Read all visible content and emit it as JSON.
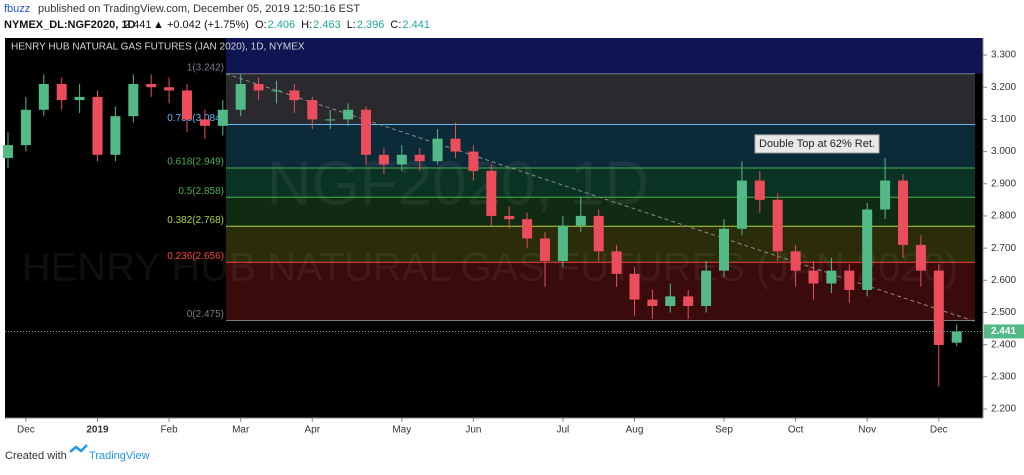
{
  "header": {
    "publisher": "fbuzz",
    "published": "published on TradingView.com, December 05, 2019 12:50:16 EST",
    "symbol": "NYMEX_DL:NGF2020, 1D",
    "last": "2.441",
    "change": "▲ +0.042 (+1.75%)",
    "quote": [
      {
        "label": "O:",
        "value": "2.406"
      },
      {
        "label": "H:",
        "value": "2.463"
      },
      {
        "label": "L:",
        "value": "2.396"
      },
      {
        "label": "C:",
        "value": "2.441"
      }
    ]
  },
  "chart_data": {
    "type": "candlestick",
    "title": "HENRY HUB NATURAL GAS FUTURES (JAN 2020), 1D, NYMEX",
    "watermark": [
      "NGF2020, 1D",
      "HENRY HUB NATURAL GAS FUTURES (JAN 2020)"
    ],
    "annotation": "Double Top at 62% Ret.",
    "categories": [
      null,
      "Dec",
      null,
      null,
      null,
      "2019",
      null,
      null,
      null,
      "Feb",
      null,
      null,
      null,
      "Mar",
      null,
      null,
      null,
      "Apr",
      null,
      null,
      null,
      null,
      "May",
      null,
      null,
      null,
      "Jun",
      null,
      null,
      null,
      null,
      "Jul",
      null,
      null,
      null,
      "Aug",
      null,
      null,
      null,
      null,
      "Sep",
      null,
      null,
      null,
      "Oct",
      null,
      null,
      null,
      "Nov",
      null,
      null,
      null,
      "Dec",
      null
    ],
    "open": [
      2.98,
      3.02,
      3.13,
      3.21,
      3.16,
      3.17,
      2.99,
      3.11,
      3.21,
      3.2,
      3.19,
      3.1,
      3.08,
      3.13,
      3.21,
      3.19,
      3.19,
      3.16,
      3.1,
      3.1,
      3.13,
      2.99,
      2.96,
      2.99,
      2.97,
      3.04,
      3.0,
      2.94,
      2.8,
      2.79,
      2.73,
      2.66,
      2.77,
      2.8,
      2.69,
      2.62,
      2.54,
      2.52,
      2.55,
      2.52,
      2.63,
      2.76,
      2.91,
      2.85,
      2.69,
      2.63,
      2.59,
      2.63,
      2.57,
      2.82,
      2.91,
      2.71,
      2.63,
      2.406
    ],
    "high": [
      3.06,
      3.17,
      3.24,
      3.23,
      3.21,
      3.19,
      3.14,
      3.24,
      3.24,
      3.23,
      3.21,
      3.13,
      3.16,
      3.24,
      3.23,
      3.22,
      3.21,
      3.17,
      3.13,
      3.15,
      3.14,
      3.01,
      3.02,
      3.01,
      3.07,
      3.09,
      3.02,
      2.96,
      2.83,
      2.81,
      2.75,
      2.8,
      2.86,
      2.82,
      2.71,
      2.64,
      2.57,
      2.59,
      2.57,
      2.66,
      2.79,
      2.97,
      2.94,
      2.87,
      2.71,
      2.66,
      2.67,
      2.65,
      2.84,
      2.98,
      2.93,
      2.74,
      2.65,
      2.463
    ],
    "low": [
      2.95,
      3.0,
      3.11,
      3.13,
      3.12,
      2.97,
      2.97,
      3.09,
      3.17,
      3.15,
      3.06,
      3.04,
      3.05,
      3.11,
      3.16,
      3.15,
      3.12,
      3.07,
      3.07,
      3.08,
      2.96,
      2.93,
      2.94,
      2.94,
      2.96,
      2.98,
      2.91,
      2.77,
      2.76,
      2.7,
      2.58,
      2.64,
      2.75,
      2.66,
      2.58,
      2.49,
      2.48,
      2.5,
      2.48,
      2.5,
      2.61,
      2.74,
      2.81,
      2.66,
      2.58,
      2.54,
      2.56,
      2.53,
      2.55,
      2.79,
      2.67,
      2.58,
      2.27,
      2.396
    ],
    "close": [
      3.02,
      3.13,
      3.21,
      3.16,
      3.17,
      2.99,
      3.11,
      3.21,
      3.2,
      3.19,
      3.1,
      3.08,
      3.13,
      3.21,
      3.19,
      3.19,
      3.16,
      3.1,
      3.1,
      3.13,
      2.99,
      2.96,
      2.99,
      2.97,
      3.04,
      3.0,
      2.94,
      2.8,
      2.79,
      2.73,
      2.66,
      2.77,
      2.8,
      2.69,
      2.62,
      2.54,
      2.52,
      2.55,
      2.52,
      2.63,
      2.76,
      2.91,
      2.85,
      2.69,
      2.63,
      2.59,
      2.63,
      2.57,
      2.82,
      2.91,
      2.71,
      2.63,
      2.399,
      2.441
    ],
    "up_color": "#53b987",
    "down_color": "#eb4d5c",
    "last_price": {
      "value": 2.441,
      "label": "2.441"
    },
    "last_color": "#53b987",
    "ylim": [
      2.172,
      3.353
    ],
    "yticks": [
      {
        "value": 2.2,
        "label": "2.200"
      },
      {
        "value": 2.3,
        "label": "2.300"
      },
      {
        "value": 2.4,
        "label": "2.400"
      },
      {
        "value": 2.5,
        "label": "2.500"
      },
      {
        "value": 2.6,
        "label": "2.600"
      },
      {
        "value": 2.7,
        "label": "2.700"
      },
      {
        "value": 2.8,
        "label": "2.800"
      },
      {
        "value": 2.9,
        "label": "2.900"
      },
      {
        "value": 3.0,
        "label": "3.000"
      },
      {
        "value": 3.1,
        "label": "3.100"
      },
      {
        "value": 3.2,
        "label": "3.200"
      },
      {
        "value": 3.3,
        "label": "3.300"
      }
    ],
    "fib": {
      "levels": [
        {
          "value": 3.242,
          "label": "1(3.242)"
        },
        {
          "value": 3.084,
          "label": "0.786(3.084)"
        },
        {
          "value": 2.949,
          "label": "0.618(2.949)"
        },
        {
          "value": 2.858,
          "label": "0.5(2.858)"
        },
        {
          "value": 2.768,
          "label": "0.382(2.768)"
        },
        {
          "value": 2.656,
          "label": "0.236(2.656)"
        },
        {
          "value": 2.475,
          "label": "0(2.475)"
        }
      ],
      "line_colors": [
        "#787b86",
        "#64b5f6",
        "#4caf50",
        "#4caf50",
        "#b2d235",
        "#f44336",
        "#787b86"
      ],
      "zone_colors": [
        "#2a2a2e",
        "#0c2b38",
        "#0b3324",
        "#112a12",
        "#2a2c0a",
        "#3a0b0b"
      ],
      "above_color": "#0e1552"
    },
    "trend_line": {
      "values": [
        3.242,
        2.47
      ],
      "color": "#8a8a8a"
    }
  },
  "footer": {
    "text": "Created with",
    "brand": "TradingView"
  }
}
